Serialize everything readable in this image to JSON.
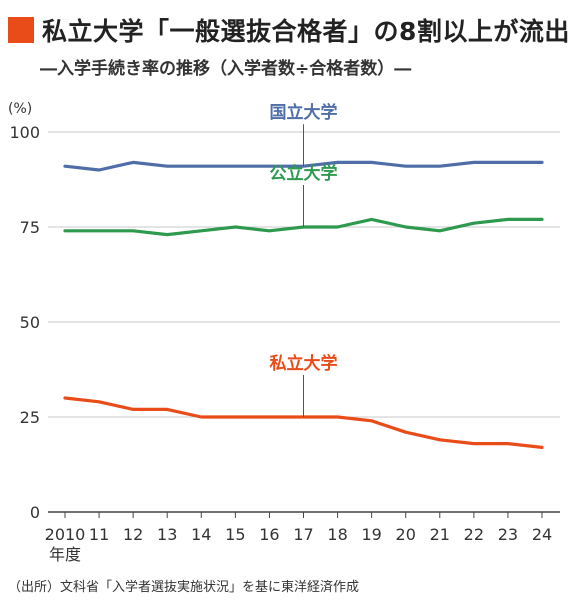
{
  "title": "私立大学「一般選抜合格者」の8割以上が流出",
  "subtitle": "―入学手続き率の推移（入学者数÷合格者数）―",
  "source": "（出所）文科省「入学者選抜実施状況」を基に東洋経済作成",
  "colors": {
    "title_mark": "#ea4c19"
  },
  "chart_data": {
    "type": "line",
    "title": "私立大学「一般選抜合格者」の8割以上が流出",
    "subtitle": "―入学手続き率の推移（入学者数÷合格者数）―",
    "y_unit": "(%)",
    "x_unit": "年度",
    "x": [
      "2010",
      "11",
      "12",
      "13",
      "14",
      "15",
      "16",
      "17",
      "18",
      "19",
      "20",
      "21",
      "22",
      "23",
      "24"
    ],
    "yticks": [
      0,
      25,
      50,
      75,
      100
    ],
    "ylim": [
      0,
      100
    ],
    "grid": true,
    "series": [
      {
        "name": "国立大学",
        "color": "#4f6ea8",
        "values": [
          91,
          90,
          92,
          91,
          91,
          91,
          91,
          91,
          92,
          92,
          91,
          91,
          92,
          92,
          92
        ]
      },
      {
        "name": "公立大学",
        "color": "#2e9a4e",
        "values": [
          74,
          74,
          74,
          73,
          74,
          75,
          74,
          75,
          75,
          77,
          75,
          74,
          76,
          77,
          77
        ]
      },
      {
        "name": "私立大学",
        "color": "#ea4c19",
        "values": [
          30,
          29,
          27,
          27,
          25,
          25,
          25,
          25,
          25,
          24,
          21,
          19,
          18,
          18,
          17
        ]
      }
    ]
  }
}
